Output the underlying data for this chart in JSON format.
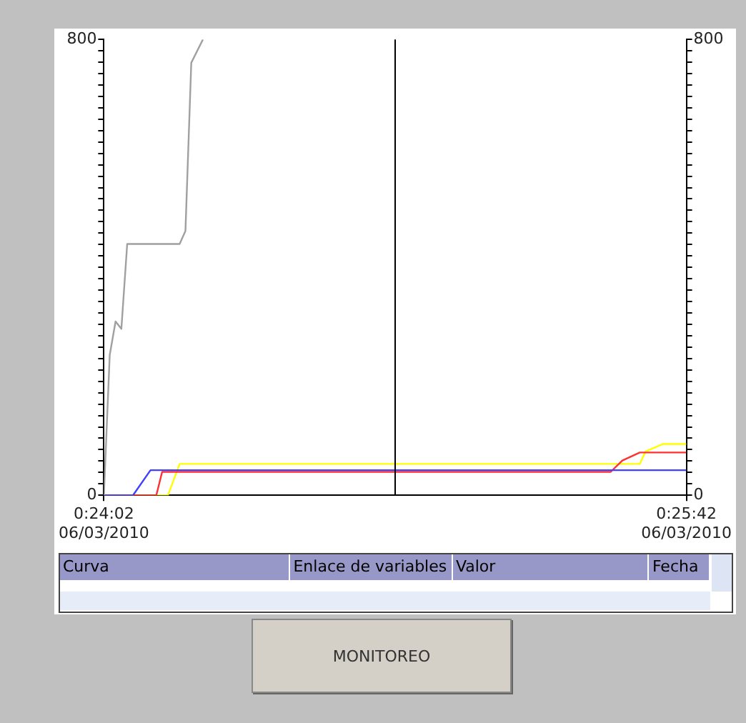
{
  "chart_data": {
    "type": "line",
    "xlim": [
      "2010-03-06T00:24:02",
      "2010-03-06T00:25:42"
    ],
    "xticks": [
      {
        "value": "2010-03-06T00:24:02",
        "label": "0:24:02\n06/03/2010"
      },
      {
        "value": "2010-03-06T00:25:42",
        "label": "0:25:42\n06/03/2010"
      }
    ],
    "ylim": [
      0,
      800
    ],
    "yticks": [
      0,
      {
        "value": 20,
        "label": null
      },
      {
        "value": 40,
        "label": null
      },
      {
        "value": 60,
        "label": null
      },
      {
        "value": 80,
        "label": null
      },
      {
        "value": 100,
        "label": null
      },
      {
        "value": 120,
        "label": null
      },
      {
        "value": 140,
        "label": null
      },
      {
        "value": 160,
        "label": null
      },
      {
        "value": 180,
        "label": null
      },
      {
        "value": 200,
        "label": null
      },
      {
        "value": 220,
        "label": null
      },
      {
        "value": 240,
        "label": null
      },
      {
        "value": 260,
        "label": null
      },
      {
        "value": 280,
        "label": null
      },
      {
        "value": 300,
        "label": null
      },
      {
        "value": 320,
        "label": null
      },
      {
        "value": 340,
        "label": null
      },
      {
        "value": 360,
        "label": null
      },
      {
        "value": 380,
        "label": null
      },
      {
        "value": 400,
        "label": null
      },
      {
        "value": 420,
        "label": null
      },
      {
        "value": 440,
        "label": null
      },
      {
        "value": 460,
        "label": null
      },
      {
        "value": 480,
        "label": null
      },
      {
        "value": 500,
        "label": null
      },
      {
        "value": 520,
        "label": null
      },
      {
        "value": 540,
        "label": null
      },
      {
        "value": 560,
        "label": null
      },
      {
        "value": 580,
        "label": null
      },
      {
        "value": 600,
        "label": null
      },
      {
        "value": 620,
        "label": null
      },
      {
        "value": 640,
        "label": null
      },
      {
        "value": 660,
        "label": null
      },
      {
        "value": 680,
        "label": null
      },
      {
        "value": 700,
        "label": null
      },
      {
        "value": 720,
        "label": null
      },
      {
        "value": 740,
        "label": null
      },
      {
        "value": 760,
        "label": null
      },
      {
        "value": 780,
        "label": null
      },
      800
    ],
    "y2lim": [
      0,
      800
    ],
    "y2ticks": [
      0,
      {
        "value": 20,
        "label": null
      },
      {
        "value": 40,
        "label": null
      },
      {
        "value": 60,
        "label": null
      },
      {
        "value": 80,
        "label": null
      },
      {
        "value": 100,
        "label": null
      },
      {
        "value": 120,
        "label": null
      },
      {
        "value": 140,
        "label": null
      },
      {
        "value": 160,
        "label": null
      },
      {
        "value": 180,
        "label": null
      },
      {
        "value": 200,
        "label": null
      },
      {
        "value": 220,
        "label": null
      },
      {
        "value": 240,
        "label": null
      },
      {
        "value": 260,
        "label": null
      },
      {
        "value": 280,
        "label": null
      },
      {
        "value": 300,
        "label": null
      },
      {
        "value": 320,
        "label": null
      },
      {
        "value": 340,
        "label": null
      },
      {
        "value": 360,
        "label": null
      },
      {
        "value": 380,
        "label": null
      },
      {
        "value": 400,
        "label": null
      },
      {
        "value": 420,
        "label": null
      },
      {
        "value": 440,
        "label": null
      },
      {
        "value": 460,
        "label": null
      },
      {
        "value": 480,
        "label": null
      },
      {
        "value": 500,
        "label": null
      },
      {
        "value": 520,
        "label": null
      },
      {
        "value": 540,
        "label": null
      },
      {
        "value": 560,
        "label": null
      },
      {
        "value": 580,
        "label": null
      },
      {
        "value": 600,
        "label": null
      },
      {
        "value": 620,
        "label": null
      },
      {
        "value": 640,
        "label": null
      },
      {
        "value": 660,
        "label": null
      },
      {
        "value": 680,
        "label": null
      },
      {
        "value": 700,
        "label": null
      },
      {
        "value": 720,
        "label": null
      },
      {
        "value": 740,
        "label": null
      },
      {
        "value": 760,
        "label": null
      },
      {
        "value": 780,
        "label": null
      },
      800
    ],
    "series": [
      {
        "color": "#a0a0a0",
        "x": [
          "2010-03-06T00:24:02",
          "2010-03-06T00:24:03",
          "2010-03-06T00:24:04",
          "2010-03-06T00:24:05",
          "2010-03-06T00:24:06",
          "2010-03-06T00:24:15",
          "2010-03-06T00:24:16",
          "2010-03-06T00:24:17",
          "2010-03-06T00:24:19"
        ],
        "values": [
          0,
          246,
          305,
          292,
          441,
          441,
          464,
          759,
          800
        ]
      },
      {
        "color": "#4040ff",
        "x": [
          "2010-03-06T00:24:02",
          "2010-03-06T00:24:07",
          "2010-03-06T00:24:10",
          "2010-03-06T00:25:42"
        ],
        "values": [
          0,
          0,
          44,
          44
        ]
      },
      {
        "color": "#ff3030",
        "x": [
          "2010-03-06T00:24:02",
          "2010-03-06T00:24:11",
          "2010-03-06T00:24:12",
          "2010-03-06T00:25:29",
          "2010-03-06T00:25:31",
          "2010-03-06T00:25:34",
          "2010-03-06T00:25:42"
        ],
        "values": [
          0,
          0,
          41,
          41,
          61,
          75,
          75
        ]
      },
      {
        "color": "#ffff00",
        "x": [
          "2010-03-06T00:24:02",
          "2010-03-06T00:24:13",
          "2010-03-06T00:24:15",
          "2010-03-06T00:25:34",
          "2010-03-06T00:25:35",
          "2010-03-06T00:25:38",
          "2010-03-06T00:25:42"
        ],
        "values": [
          0,
          0,
          55,
          55,
          77,
          90,
          90
        ]
      }
    ],
    "ref_lines": [
      {
        "axis": "x",
        "value": "2010-03-06T00:24:52",
        "color": "#000000"
      }
    ],
    "grid": false,
    "legend": false,
    "marker": "none",
    "line_style": "solid",
    "annotations": [
      "Curva",
      "Enlace de variables",
      "Valor",
      "Fecha",
      "MONITOREO"
    ]
  }
}
